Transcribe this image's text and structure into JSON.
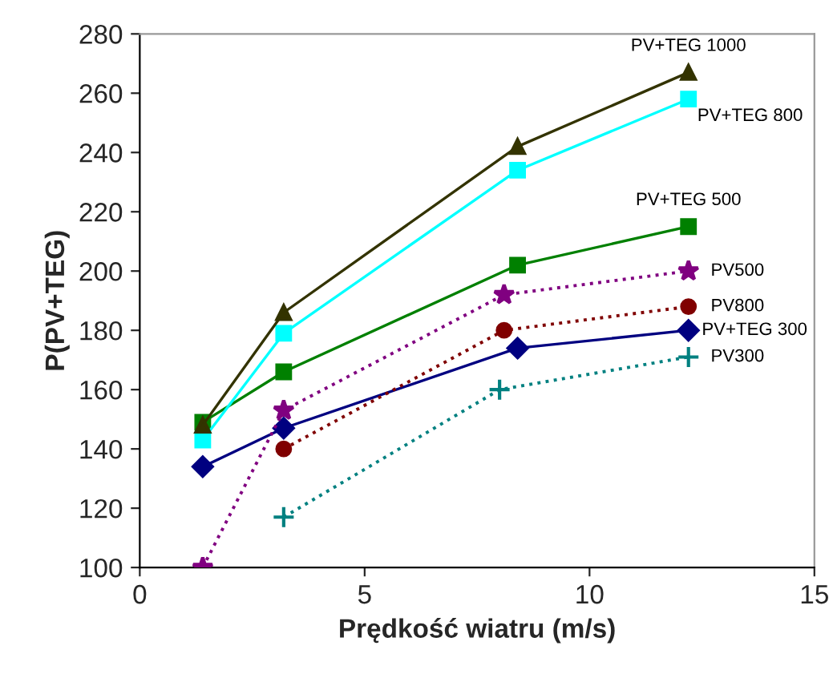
{
  "chart_data": {
    "type": "line",
    "xlabel": "Prędkość wiatru (m/s)",
    "ylabel": "P(PV+TEG)",
    "xlim": [
      0,
      15
    ],
    "xticks": [
      0,
      5,
      10,
      15
    ],
    "ylim": [
      100,
      280
    ],
    "yticks": [
      100,
      120,
      140,
      160,
      180,
      200,
      220,
      240,
      260,
      280
    ],
    "grid": false,
    "legend": false,
    "series": [
      {
        "name": "PV+TEG 1000",
        "color": "#333300",
        "x": [
          1.4,
          3.2,
          8.4,
          12.2
        ],
        "values": [
          148,
          186,
          242,
          267
        ],
        "marker": "triangle",
        "line_style": "solid"
      },
      {
        "name": "PV+TEG 800",
        "color": "#00ffff",
        "x": [
          1.4,
          3.2,
          8.4,
          12.2
        ],
        "values": [
          143,
          179,
          234,
          258
        ],
        "marker": "square",
        "line_style": "solid"
      },
      {
        "name": "PV+TEG 500",
        "color": "#008000",
        "x": [
          1.4,
          3.2,
          8.4,
          12.2
        ],
        "values": [
          149,
          166,
          202,
          215
        ],
        "marker": "square",
        "line_style": "solid"
      },
      {
        "name": "PV500",
        "color": "#800080",
        "x": [
          1.4,
          3.2,
          8.1,
          12.2
        ],
        "values": [
          100,
          153,
          192,
          200
        ],
        "marker": "star",
        "line_style": "dotted"
      },
      {
        "name": "PV800",
        "color": "#800000",
        "x": [
          3.2,
          8.1,
          12.2
        ],
        "values": [
          140,
          180,
          188
        ],
        "marker": "circle",
        "line_style": "dotted"
      },
      {
        "name": "PV+TEG 300",
        "color": "#000080",
        "x": [
          1.4,
          3.2,
          8.4,
          12.2
        ],
        "values": [
          134,
          147,
          174,
          180
        ],
        "marker": "diamond",
        "line_style": "solid"
      },
      {
        "name": "PV300",
        "color": "#008080",
        "x": [
          3.2,
          8.0,
          12.2
        ],
        "values": [
          117,
          160,
          171
        ],
        "marker": "cross",
        "line_style": "dotted"
      }
    ]
  }
}
